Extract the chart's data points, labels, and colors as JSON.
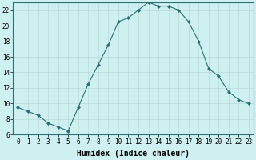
{
  "x": [
    0,
    1,
    2,
    3,
    4,
    5,
    6,
    7,
    8,
    9,
    10,
    11,
    12,
    13,
    14,
    15,
    16,
    17,
    18,
    19,
    20,
    21,
    22,
    23
  ],
  "y": [
    9.5,
    9.0,
    8.5,
    7.5,
    7.0,
    6.5,
    9.5,
    12.5,
    15.0,
    17.5,
    20.5,
    21.0,
    22.0,
    23.0,
    22.5,
    22.5,
    22.0,
    20.5,
    18.0,
    14.5,
    13.5,
    11.5,
    10.5,
    10.0
  ],
  "line_color": "#2d6e6e",
  "marker": "D",
  "marker_size": 2.0,
  "bg_color": "#cff0f0",
  "grid_color": "#b8dada",
  "grid_minor_color": "#d0e8e8",
  "xlabel": "Humidex (Indice chaleur)",
  "xlim": [
    -0.5,
    23.5
  ],
  "ylim": [
    6,
    23
  ],
  "yticks": [
    6,
    8,
    10,
    12,
    14,
    16,
    18,
    20,
    22
  ],
  "xticks": [
    0,
    1,
    2,
    3,
    4,
    5,
    6,
    7,
    8,
    9,
    10,
    11,
    12,
    13,
    14,
    15,
    16,
    17,
    18,
    19,
    20,
    21,
    22,
    23
  ],
  "xlabel_fontsize": 7,
  "tick_fontsize": 5.5,
  "spine_color": "#2d6e6e"
}
